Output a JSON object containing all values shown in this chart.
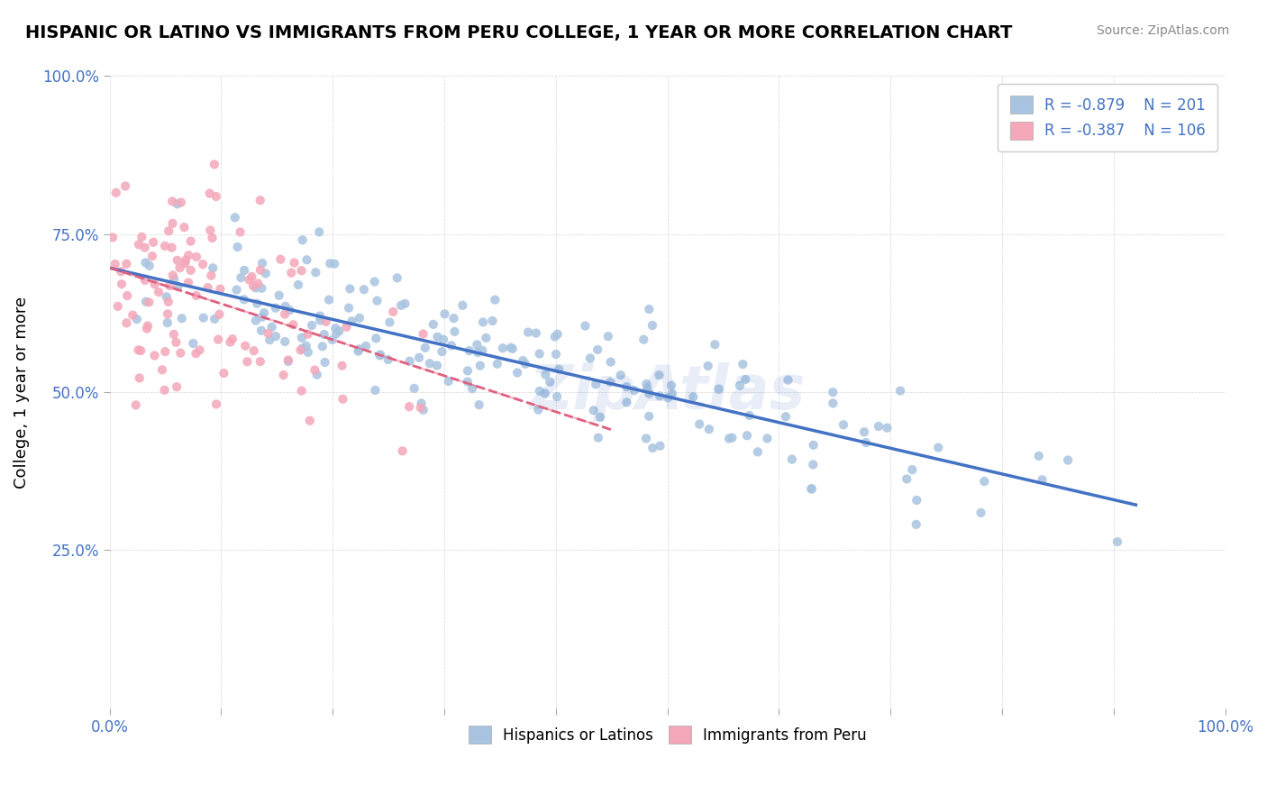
{
  "title": "HISPANIC OR LATINO VS IMMIGRANTS FROM PERU COLLEGE, 1 YEAR OR MORE CORRELATION CHART",
  "source": "Source: ZipAtlas.com",
  "xlabel": "",
  "ylabel": "College, 1 year or more",
  "xlim": [
    0.0,
    1.0
  ],
  "ylim": [
    0.0,
    1.0
  ],
  "xtick_labels": [
    "0.0%",
    "100.0%"
  ],
  "ytick_labels": [
    "25.0%",
    "50.0%",
    "75.0%",
    "100.0%"
  ],
  "legend1_r": "R = -0.879",
  "legend1_n": "N = 201",
  "legend2_r": "R = -0.387",
  "legend2_n": "N = 106",
  "blue_color": "#a8c4e0",
  "blue_line_color": "#4472c4",
  "pink_color": "#f4a7b9",
  "pink_line_color": "#e06080",
  "watermark": "ZipAtlas",
  "blue_slope": -0.879,
  "pink_slope": -0.387,
  "seed_blue": 42,
  "seed_pink": 99,
  "n_blue": 201,
  "n_pink": 106
}
